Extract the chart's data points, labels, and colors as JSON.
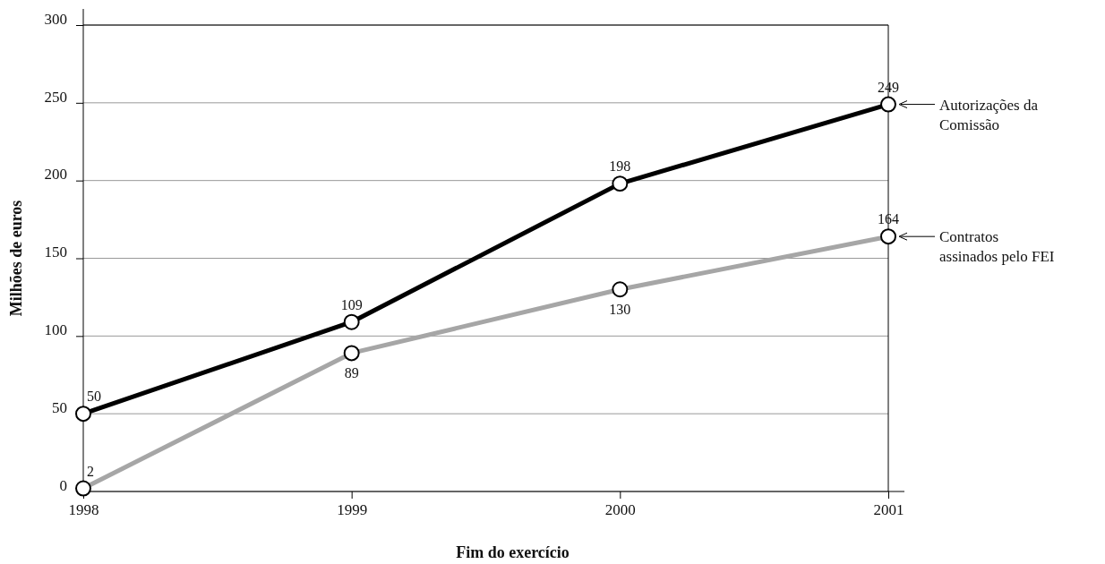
{
  "chart_data": {
    "type": "line",
    "xlabel": "Fim do exercício",
    "ylabel": "Milhões de euros",
    "x": [
      1998,
      1999,
      2000,
      2001
    ],
    "series": [
      {
        "name": "Autorizações da Comissão",
        "color": "#000000",
        "values": [
          50,
          109,
          198,
          249
        ]
      },
      {
        "name": "Contratos assinados pelo FEI",
        "color": "#a6a6a6",
        "values": [
          2,
          89,
          130,
          164
        ]
      }
    ],
    "xlim": [
      1998,
      2001
    ],
    "xticks": [
      1998,
      1999,
      2000,
      2001
    ],
    "ylim": [
      0,
      300
    ],
    "yticks": [
      0,
      50,
      100,
      150,
      200,
      250,
      300
    ],
    "grid": "y",
    "legend": "right",
    "marker": "circle",
    "line_style": "solid",
    "data_labels": true
  }
}
